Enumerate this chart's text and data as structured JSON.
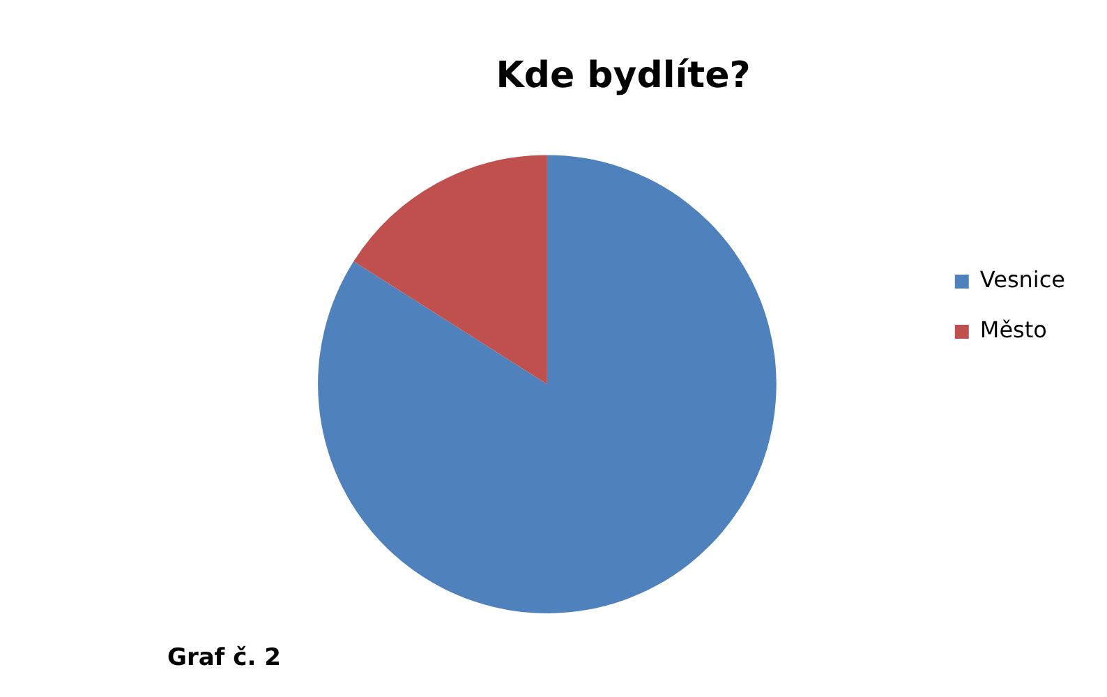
{
  "chart_data": {
    "type": "pie",
    "title": "Kde bydlíte?",
    "categories": [
      "Vesnice",
      "Město"
    ],
    "values": [
      84,
      16
    ],
    "colors": [
      "#4f81bd",
      "#c0504d"
    ],
    "legend": "right",
    "annotations": [
      "Graf č. 2"
    ]
  }
}
